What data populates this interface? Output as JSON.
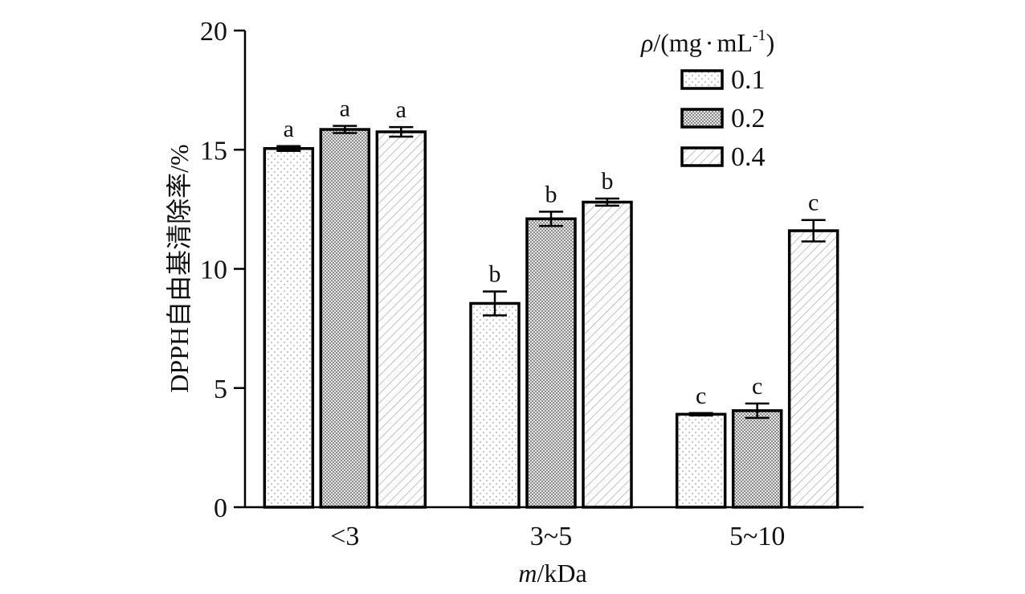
{
  "chart_data": {
    "type": "bar",
    "title": "",
    "xlabel": "m/kDa",
    "xlabel_parts": {
      "var": "m",
      "rest": "/kDa"
    },
    "ylabel": "DPPH自由基清除率/%",
    "ylim": [
      0,
      20
    ],
    "yticks": [
      0,
      5,
      10,
      15,
      20
    ],
    "categories": [
      "<3",
      "3~5",
      "5~10"
    ],
    "legend": {
      "title": "ρ/(mg·mL⁻¹)",
      "title_parts": {
        "rho": "ρ",
        "pre": "/(mg",
        "dot": "·",
        "mid": "mL",
        "sup": "-1",
        "post": ")"
      },
      "placement": "top-right"
    },
    "series": [
      {
        "name": "0.1",
        "pattern": "dots",
        "values": [
          15.05,
          8.55,
          3.9
        ],
        "errors": [
          0.1,
          0.5,
          0.05
        ],
        "labels": [
          "a",
          "b",
          "c"
        ]
      },
      {
        "name": "0.2",
        "pattern": "checker",
        "values": [
          15.85,
          12.1,
          4.05
        ],
        "errors": [
          0.15,
          0.3,
          0.3
        ],
        "labels": [
          "a",
          "b",
          "c"
        ]
      },
      {
        "name": "0.4",
        "pattern": "hatch",
        "values": [
          15.75,
          12.8,
          11.6
        ],
        "errors": [
          0.2,
          0.15,
          0.45
        ],
        "labels": [
          "a",
          "b",
          "c"
        ]
      }
    ],
    "grid": false
  }
}
